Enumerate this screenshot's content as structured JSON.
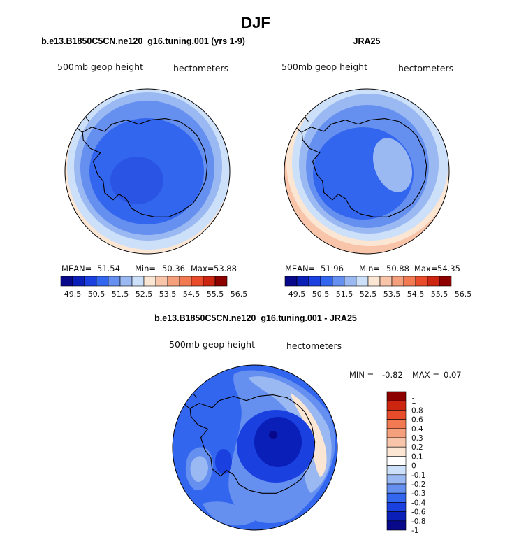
{
  "figure": {
    "title": "DJF"
  },
  "colors": {
    "main_scale": [
      "#08088a",
      "#0a1fb8",
      "#1a40e0",
      "#3366ee",
      "#6690f0",
      "#9ab8f2",
      "#cde0fa",
      "#fbe6d3",
      "#f8c5aa",
      "#f5a07c",
      "#f27a52",
      "#e84c2a",
      "#cc2610",
      "#8c0000"
    ],
    "diff_scale": [
      "#08088a",
      "#0a1fb8",
      "#1a40e0",
      "#3366ee",
      "#6690f0",
      "#9ab8f2",
      "#cde0fa",
      "#ffffff",
      "#fbe6d3",
      "#f8c5aa",
      "#f5a07c",
      "#f27a52",
      "#e84c2a",
      "#cc2610",
      "#8c0000"
    ],
    "land_outline": "#000000"
  },
  "chart_data": [
    {
      "type": "heatmap",
      "panel": "model",
      "title": "b.e13.B1850C5CN.ne120_g16.tuning.001 (yrs 1-9)",
      "variable": "500mb geop height",
      "units": "hectometers",
      "stats": {
        "mean_label": "MEAN=",
        "mean": "51.54",
        "min_label": "Min=",
        "min": "50.36",
        "max_label": "Max=",
        "max": "53.88"
      },
      "colorbar_levels": [
        "49.5",
        "50.5",
        "51.5",
        "52.5",
        "53.5",
        "54.5",
        "55.5",
        "56.5"
      ],
      "approx_field": {
        "rim_level": 7,
        "center_level": 3
      }
    },
    {
      "type": "heatmap",
      "panel": "obs",
      "title": "JRA25",
      "variable": "500mb geop height",
      "units": "hectometers",
      "stats": {
        "mean_label": "MEAN=",
        "mean": "51.96",
        "min_label": "Min=",
        "min": "50.88",
        "max_label": "Max=",
        "max": "54.35"
      },
      "colorbar_levels": [
        "49.5",
        "50.5",
        "51.5",
        "52.5",
        "53.5",
        "54.5",
        "55.5",
        "56.5"
      ],
      "approx_field": {
        "rim_level": 8,
        "center_level": 4
      }
    },
    {
      "type": "heatmap",
      "panel": "difference",
      "title": "b.e13.B1850C5CN.ne120_g16.tuning.001 - JRA25",
      "variable": "500mb geop height",
      "units": "hectometers",
      "stats": {
        "min_label": "MIN =",
        "min": "-0.82",
        "max_label": "MAX =",
        "max": "0.07"
      },
      "colorbar_levels": [
        "1",
        "0.8",
        "0.6",
        "0.4",
        "0.3",
        "0.2",
        "0.1",
        "0",
        "-0.1",
        "-0.2",
        "-0.3",
        "-0.4",
        "-0.6",
        "-0.8",
        "-1"
      ]
    }
  ]
}
